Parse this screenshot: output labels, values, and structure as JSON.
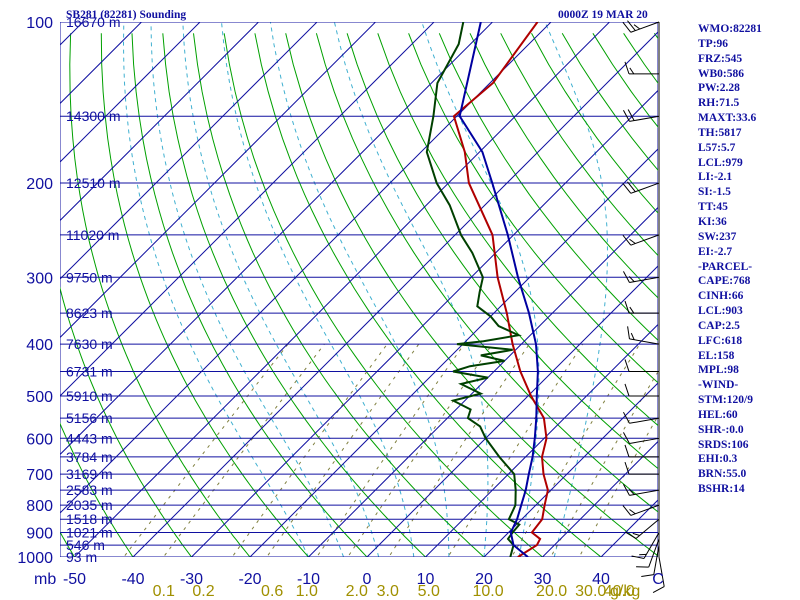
{
  "chart_data": {
    "type": "line",
    "title": "SB281 (82281) Sounding",
    "subtitle": "0000Z 19 MAR 20",
    "pressure_label": "mb",
    "mixing_ratio_unit": "g/kg",
    "pressure_levels": [
      100,
      200,
      300,
      400,
      500,
      600,
      700,
      800,
      900,
      1000
    ],
    "ylim": [
      1000,
      100
    ],
    "temperature_ticks": [
      -50,
      -40,
      -30,
      -20,
      -10,
      0,
      10,
      20,
      30,
      40
    ],
    "xlim": [
      -50,
      50
    ],
    "end_tick": "C",
    "mixing_ratio_labels": [
      {
        "t": 0.1,
        "label": "0.1"
      },
      {
        "t": 0.2,
        "label": "0.2"
      },
      {
        "t": 0.6,
        "label": "0.6"
      },
      {
        "t": 1.0,
        "label": "1.0"
      },
      {
        "t": 2.0,
        "label": "2.0"
      },
      {
        "t": 3.0,
        "label": "3.0"
      },
      {
        "t": 5.0,
        "label": "5.0"
      },
      {
        "t": 10.0,
        "label": "10.0"
      },
      {
        "t": 20.0,
        "label": "20.0"
      },
      {
        "t": 30.0,
        "label": "30.0"
      },
      {
        "t": 40.0,
        "label": "40.0"
      }
    ],
    "heights": [
      {
        "p": 100,
        "label": "16670 m"
      },
      {
        "p": 150,
        "label": "14300 m"
      },
      {
        "p": 200,
        "label": "12510 m"
      },
      {
        "p": 250,
        "label": "11020 m"
      },
      {
        "p": 300,
        "label": "9750 m"
      },
      {
        "p": 350,
        "label": "8623 m"
      },
      {
        "p": 400,
        "label": "7630 m"
      },
      {
        "p": 450,
        "label": "6731 m"
      },
      {
        "p": 500,
        "label": "5910 m"
      },
      {
        "p": 550,
        "label": "5156 m"
      },
      {
        "p": 600,
        "label": "4443 m"
      },
      {
        "p": 650,
        "label": "3784 m"
      },
      {
        "p": 700,
        "label": "3169 m"
      },
      {
        "p": 750,
        "label": "2583 m"
      },
      {
        "p": 800,
        "label": "2035 m"
      },
      {
        "p": 850,
        "label": "1518 m"
      },
      {
        "p": 900,
        "label": "1021 m"
      },
      {
        "p": 950,
        "label": "546 m"
      },
      {
        "p": 1000,
        "label": "93 m"
      }
    ],
    "series": [
      {
        "name": "Temperature",
        "color": "#b00000",
        "points": [
          [
            1000,
            25.8
          ],
          [
            950,
            27.0
          ],
          [
            925,
            26.5
          ],
          [
            900,
            24.0
          ],
          [
            850,
            23.5
          ],
          [
            800,
            21.5
          ],
          [
            750,
            19.5
          ],
          [
            700,
            16.0
          ],
          [
            650,
            12.8
          ],
          [
            600,
            10.4
          ],
          [
            550,
            6.5
          ],
          [
            500,
            0.5
          ],
          [
            450,
            -5.5
          ],
          [
            400,
            -11.5
          ],
          [
            350,
            -17.8
          ],
          [
            300,
            -25.5
          ],
          [
            250,
            -33.6
          ],
          [
            200,
            -46.5
          ],
          [
            175,
            -52.5
          ],
          [
            150,
            -60.5
          ],
          [
            130,
            -59.5
          ],
          [
            100,
            -62.3
          ]
        ]
      },
      {
        "name": "Dewpoint",
        "color": "#004000",
        "points": [
          [
            1000,
            24.5
          ],
          [
            950,
            23.0
          ],
          [
            925,
            21.0
          ],
          [
            900,
            20.7
          ],
          [
            870,
            20.5
          ],
          [
            850,
            17.8
          ],
          [
            800,
            16.5
          ],
          [
            750,
            14.0
          ],
          [
            700,
            11.0
          ],
          [
            650,
            5.5
          ],
          [
            600,
            0.0
          ],
          [
            570,
            -3.0
          ],
          [
            550,
            -6.5
          ],
          [
            530,
            -7.5
          ],
          [
            510,
            -12.0
          ],
          [
            495,
            -8.5
          ],
          [
            475,
            -13.5
          ],
          [
            462,
            -10.0
          ],
          [
            450,
            -17.0
          ],
          [
            440,
            -15.0
          ],
          [
            430,
            -10.0
          ],
          [
            420,
            -15.0
          ],
          [
            410,
            -10.5
          ],
          [
            400,
            -21.0
          ],
          [
            395,
            -17.0
          ],
          [
            385,
            -12.0
          ],
          [
            370,
            -17.0
          ],
          [
            355,
            -20.0
          ],
          [
            340,
            -24.0
          ],
          [
            320,
            -26.0
          ],
          [
            300,
            -28.0
          ],
          [
            270,
            -34.0
          ],
          [
            250,
            -39.0
          ],
          [
            220,
            -46.0
          ],
          [
            200,
            -52.0
          ],
          [
            175,
            -59.0
          ],
          [
            150,
            -64.0
          ],
          [
            130,
            -69.0
          ],
          [
            110,
            -72.0
          ],
          [
            100,
            -75.0
          ]
        ]
      },
      {
        "name": "Parcel",
        "color": "#0000a0",
        "points": [
          [
            1000,
            27.5
          ],
          [
            950,
            23.0
          ],
          [
            900,
            20.4
          ],
          [
            850,
            19.2
          ],
          [
            800,
            17.5
          ],
          [
            750,
            15.7
          ],
          [
            700,
            13.5
          ],
          [
            650,
            11.2
          ],
          [
            600,
            8.4
          ],
          [
            550,
            5.2
          ],
          [
            500,
            1.5
          ],
          [
            450,
            -2.5
          ],
          [
            400,
            -7.5
          ],
          [
            350,
            -14.0
          ],
          [
            300,
            -22.0
          ],
          [
            250,
            -31.0
          ],
          [
            200,
            -42.5
          ],
          [
            175,
            -49.5
          ],
          [
            150,
            -59.5
          ],
          [
            100,
            -72.0
          ]
        ]
      }
    ],
    "wind_barbs": [
      {
        "p": 1000,
        "dir": 170,
        "spd": 10
      },
      {
        "p": 950,
        "dir": 190,
        "spd": 10
      },
      {
        "p": 925,
        "dir": 200,
        "spd": 10
      },
      {
        "p": 900,
        "dir": 210,
        "spd": 15
      },
      {
        "p": 850,
        "dir": 230,
        "spd": 15
      },
      {
        "p": 800,
        "dir": 250,
        "spd": 15
      },
      {
        "p": 750,
        "dir": 260,
        "spd": 15
      },
      {
        "p": 700,
        "dir": 270,
        "spd": 10
      },
      {
        "p": 650,
        "dir": 270,
        "spd": 10
      },
      {
        "p": 600,
        "dir": 260,
        "spd": 10
      },
      {
        "p": 550,
        "dir": 260,
        "spd": 10
      },
      {
        "p": 500,
        "dir": 270,
        "spd": 10
      },
      {
        "p": 450,
        "dir": 270,
        "spd": 10
      },
      {
        "p": 400,
        "dir": 280,
        "spd": 15
      },
      {
        "p": 350,
        "dir": 270,
        "spd": 15
      },
      {
        "p": 300,
        "dir": 260,
        "spd": 15
      },
      {
        "p": 250,
        "dir": 250,
        "spd": 15
      },
      {
        "p": 200,
        "dir": 250,
        "spd": 20
      },
      {
        "p": 150,
        "dir": 260,
        "spd": 20
      },
      {
        "p": 125,
        "dir": 270,
        "spd": 15
      },
      {
        "p": 100,
        "dir": 250,
        "spd": 25
      }
    ]
  },
  "indices": [
    "WMO:82281",
    "TP:96",
    "FRZ:545",
    "WB0:586",
    "PW:2.28",
    "RH:71.5",
    "MAXT:33.6",
    "TH:5817",
    "L57:5.7",
    "LCL:979",
    "LI:-2.1",
    "SI:-1.5",
    "TT:45",
    "KI:36",
    "SW:237",
    "EI:-2.7",
    "-PARCEL-",
    "CAPE:768",
    "CINH:66",
    "LCL:903",
    "CAP:2.5",
    "LFC:618",
    "EL:158",
    "MPL:98",
    "-WIND-",
    "STM:120/9",
    "HEL:60",
    "SHR-:0.0",
    "SRDS:106",
    "EHI:0.3",
    "BRN:55.0",
    "BSHR:14"
  ],
  "colors": {
    "isobar": "#1010a0",
    "isotherm": "#1010a0",
    "dry_adiabat": "#00a000",
    "moist_adiabat": "#40b0d0",
    "mixing_ratio": "#808040",
    "label_blue": "#1010a0",
    "label_olive": "#a09000"
  }
}
